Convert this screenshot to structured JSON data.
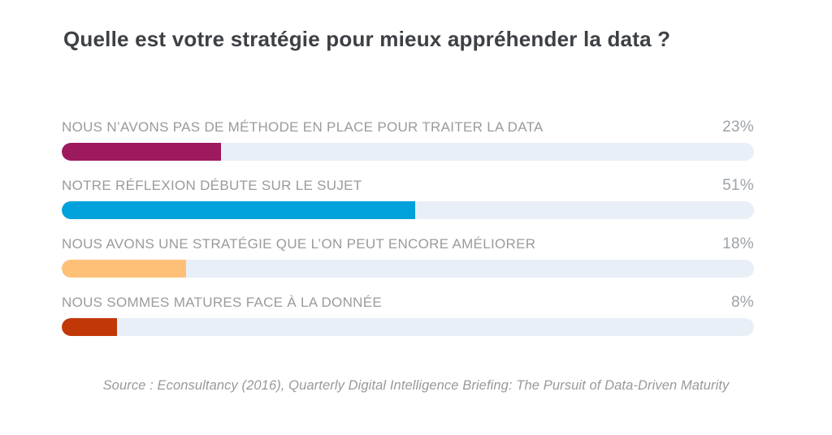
{
  "page": {
    "title": "Quelle est votre stratégie pour mieux appréhender la data ?",
    "source": "Source : Econsultancy (2016), Quarterly Digital Intelligence Briefing: The Pursuit of Data-Driven Maturity"
  },
  "colors": {
    "background": "#ffffff",
    "title_text": "#3d4045",
    "label_text": "#9b9b9b",
    "value_text": "#9da3a9",
    "track": "#e9eff7",
    "bar_magenta": "#9d1a5f",
    "bar_blue": "#00a2dc",
    "bar_light_orange": "#fec077",
    "bar_rust": "#c23708"
  },
  "chart_data": {
    "type": "bar",
    "orientation": "horizontal",
    "title": "Quelle est votre stratégie pour mieux appréhender la data ?",
    "categories": [
      "NOUS N’AVONS PAS DE MÉTHODE EN PLACE POUR TRAITER LA DATA",
      "NOTRE RÉFLEXION DÉBUTE SUR LE SUJET",
      "NOUS AVONS UNE STRATÉGIE QUE L’ON PEUT ENCORE AMÉLIORER",
      "NOUS SOMMES MATURES FACE À LA DONNÉE"
    ],
    "values": [
      23,
      51,
      18,
      8
    ],
    "value_labels": [
      "23%",
      "51%",
      "18%",
      "8%"
    ],
    "bar_colors": [
      "#9d1a5f",
      "#00a2dc",
      "#fec077",
      "#c23708"
    ],
    "track_color": "#e9eff7",
    "xlim": [
      0,
      100
    ],
    "grid": false,
    "legend": false,
    "source": "Source : Econsultancy (2016), Quarterly Digital Intelligence Briefing: The Pursuit of Data-Driven Maturity"
  }
}
